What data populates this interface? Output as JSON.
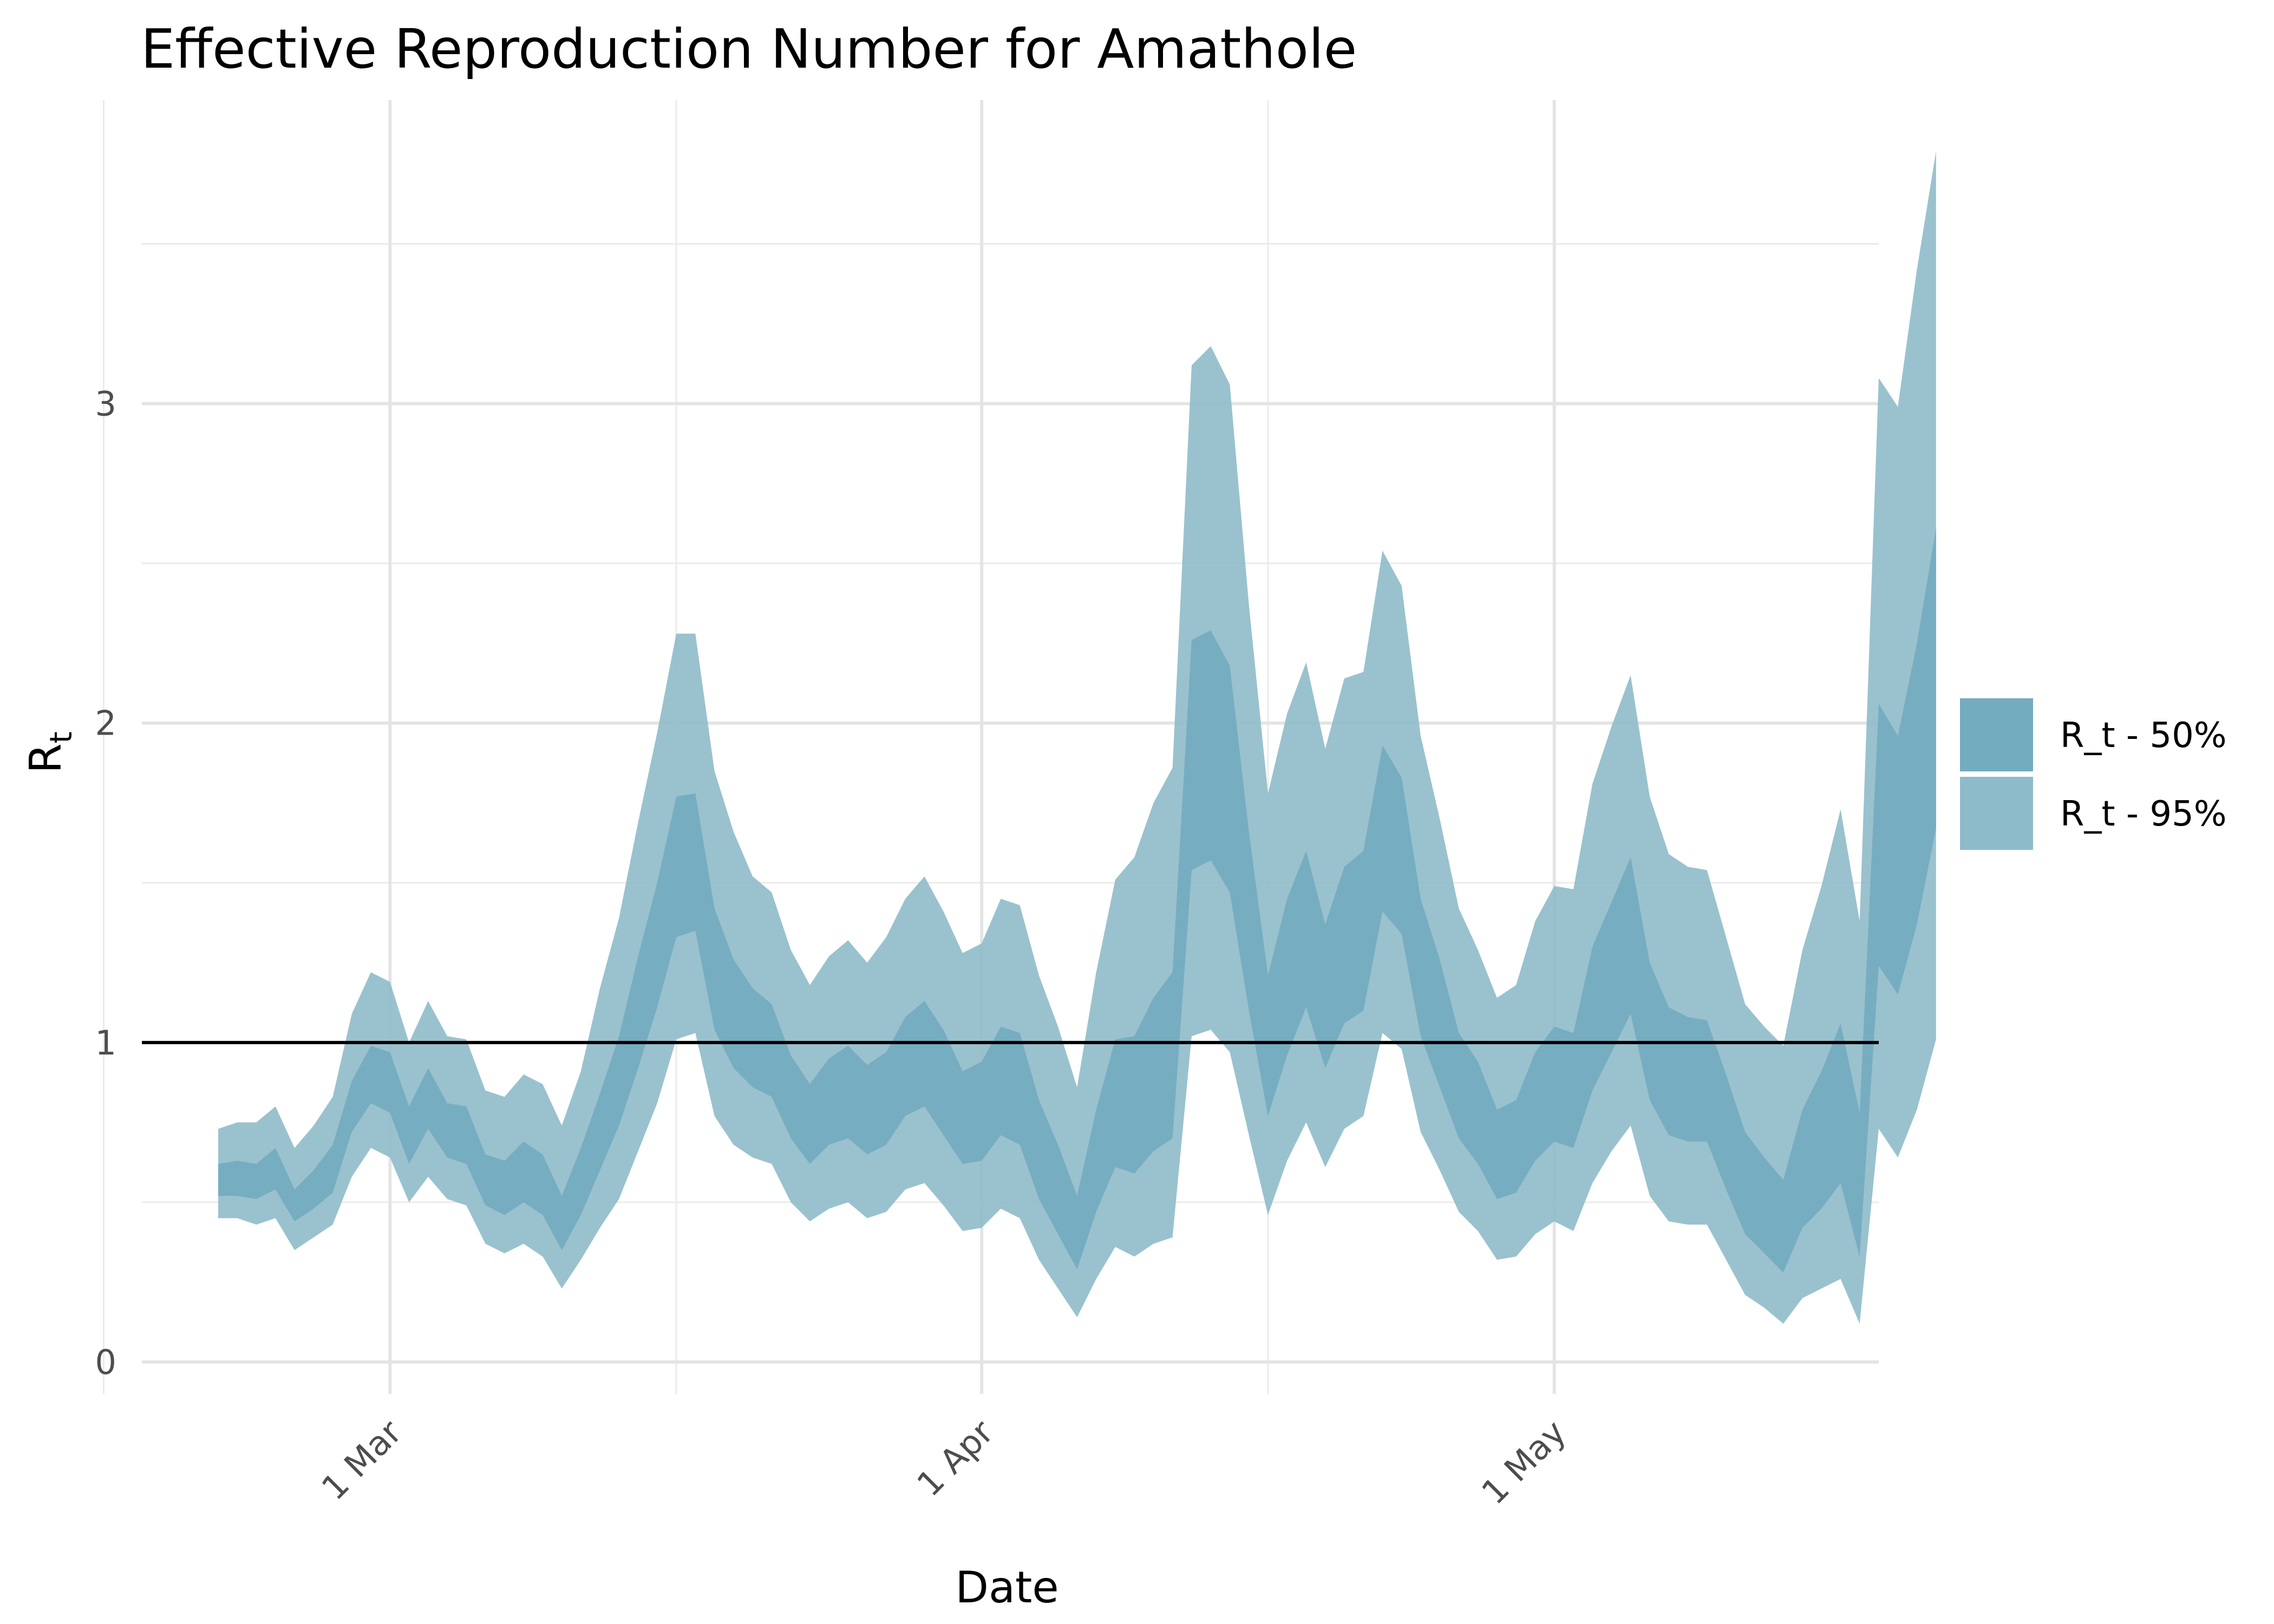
{
  "chart_data": {
    "type": "area",
    "title": "Effective Reproduction Number for Amathole",
    "xlabel": "Date",
    "ylabel_main": "R",
    "ylabel_sub": "t",
    "x_range": [
      "2021-02-16",
      "2021-05-18"
    ],
    "ylim": [
      -0.1,
      3.95
    ],
    "y_ticks": [
      0,
      1,
      2,
      3
    ],
    "y_minor_ticks": [
      0.5,
      1.5,
      2.5,
      3.5
    ],
    "x_ticks": [
      {
        "date": "2021-03-01",
        "label": "1 Mar"
      },
      {
        "date": "2021-04-01",
        "label": "1 Apr"
      },
      {
        "date": "2021-05-01",
        "label": "1 May"
      }
    ],
    "x_minor_ticks": [
      "2021-02-14",
      "2021-03-16",
      "2021-04-16"
    ],
    "reference_line": {
      "y": 1,
      "color": "#000000"
    },
    "grid": true,
    "legend_position": "right",
    "start_date": "2021-02-20",
    "series": [
      {
        "name": "R_t - 95%",
        "color": "#8ebbc9",
        "lower": [
          0.45,
          0.45,
          0.43,
          0.45,
          0.35,
          0.39,
          0.43,
          0.58,
          0.67,
          0.64,
          0.5,
          0.58,
          0.51,
          0.49,
          0.37,
          0.34,
          0.37,
          0.33,
          0.23,
          0.32,
          0.42,
          0.51,
          0.66,
          0.81,
          1.01,
          1.03,
          0.77,
          0.68,
          0.64,
          0.62,
          0.5,
          0.44,
          0.48,
          0.5,
          0.45,
          0.47,
          0.54,
          0.56,
          0.49,
          0.41,
          0.42,
          0.48,
          0.45,
          0.32,
          0.23,
          0.14,
          0.26,
          0.36,
          0.33,
          0.37,
          0.39,
          1.02,
          1.04,
          0.97,
          0.71,
          0.46,
          0.63,
          0.75,
          0.61,
          0.73,
          0.77,
          1.03,
          0.98,
          0.72,
          0.6,
          0.47,
          0.41,
          0.32,
          0.33,
          0.4,
          0.44,
          0.41,
          0.56,
          0.66,
          0.74,
          0.52,
          0.44,
          0.43,
          0.43,
          0.32,
          0.21,
          0.17,
          0.12,
          0.2,
          0.23,
          0.26,
          0.12,
          0.73,
          0.64,
          0.79,
          1.01
        ],
        "upper": [
          0.73,
          0.75,
          0.75,
          0.8,
          0.67,
          0.74,
          0.83,
          1.09,
          1.22,
          1.19,
          1.0,
          1.13,
          1.02,
          1.01,
          0.85,
          0.83,
          0.9,
          0.87,
          0.74,
          0.91,
          1.17,
          1.39,
          1.69,
          1.97,
          2.28,
          2.28,
          1.85,
          1.66,
          1.52,
          1.47,
          1.29,
          1.18,
          1.27,
          1.32,
          1.25,
          1.33,
          1.45,
          1.52,
          1.41,
          1.28,
          1.31,
          1.45,
          1.43,
          1.21,
          1.05,
          0.86,
          1.22,
          1.51,
          1.58,
          1.75,
          1.86,
          3.12,
          3.18,
          3.06,
          2.37,
          1.78,
          2.03,
          2.19,
          1.92,
          2.14,
          2.16,
          2.54,
          2.43,
          1.96,
          1.7,
          1.42,
          1.29,
          1.14,
          1.18,
          1.38,
          1.49,
          1.48,
          1.81,
          1.99,
          2.15,
          1.77,
          1.59,
          1.55,
          1.54,
          1.33,
          1.12,
          1.05,
          0.99,
          1.29,
          1.49,
          1.73,
          1.38,
          3.08,
          2.99,
          3.42,
          3.79
        ]
      },
      {
        "name": "R_t - 50%",
        "color": "#73abbf",
        "lower": [
          0.52,
          0.52,
          0.51,
          0.54,
          0.44,
          0.48,
          0.53,
          0.72,
          0.81,
          0.78,
          0.62,
          0.73,
          0.64,
          0.62,
          0.49,
          0.46,
          0.5,
          0.46,
          0.35,
          0.46,
          0.6,
          0.74,
          0.92,
          1.11,
          1.33,
          1.35,
          1.04,
          0.92,
          0.86,
          0.83,
          0.7,
          0.62,
          0.68,
          0.7,
          0.65,
          0.68,
          0.77,
          0.8,
          0.71,
          0.62,
          0.63,
          0.71,
          0.68,
          0.51,
          0.4,
          0.29,
          0.47,
          0.61,
          0.59,
          0.66,
          0.7,
          1.54,
          1.57,
          1.47,
          1.1,
          0.77,
          0.96,
          1.11,
          0.92,
          1.06,
          1.1,
          1.41,
          1.34,
          1.02,
          0.86,
          0.7,
          0.62,
          0.51,
          0.53,
          0.63,
          0.69,
          0.67,
          0.85,
          0.97,
          1.09,
          0.82,
          0.71,
          0.69,
          0.69,
          0.54,
          0.4,
          0.34,
          0.28,
          0.42,
          0.48,
          0.56,
          0.33,
          1.24,
          1.15,
          1.37,
          1.67
        ],
        "upper": [
          0.62,
          0.63,
          0.62,
          0.67,
          0.54,
          0.6,
          0.68,
          0.88,
          0.99,
          0.97,
          0.8,
          0.92,
          0.81,
          0.8,
          0.65,
          0.63,
          0.69,
          0.65,
          0.52,
          0.67,
          0.84,
          1.02,
          1.27,
          1.5,
          1.77,
          1.78,
          1.42,
          1.26,
          1.17,
          1.12,
          0.96,
          0.87,
          0.95,
          0.99,
          0.93,
          0.97,
          1.08,
          1.13,
          1.04,
          0.91,
          0.94,
          1.05,
          1.03,
          0.82,
          0.68,
          0.52,
          0.79,
          1.01,
          1.02,
          1.14,
          1.22,
          2.26,
          2.29,
          2.18,
          1.66,
          1.21,
          1.45,
          1.6,
          1.37,
          1.55,
          1.6,
          1.93,
          1.83,
          1.45,
          1.26,
          1.03,
          0.94,
          0.79,
          0.82,
          0.97,
          1.05,
          1.03,
          1.3,
          1.44,
          1.58,
          1.25,
          1.11,
          1.08,
          1.07,
          0.9,
          0.72,
          0.64,
          0.57,
          0.79,
          0.91,
          1.06,
          0.78,
          2.06,
          1.96,
          2.25,
          2.61
        ]
      }
    ]
  }
}
